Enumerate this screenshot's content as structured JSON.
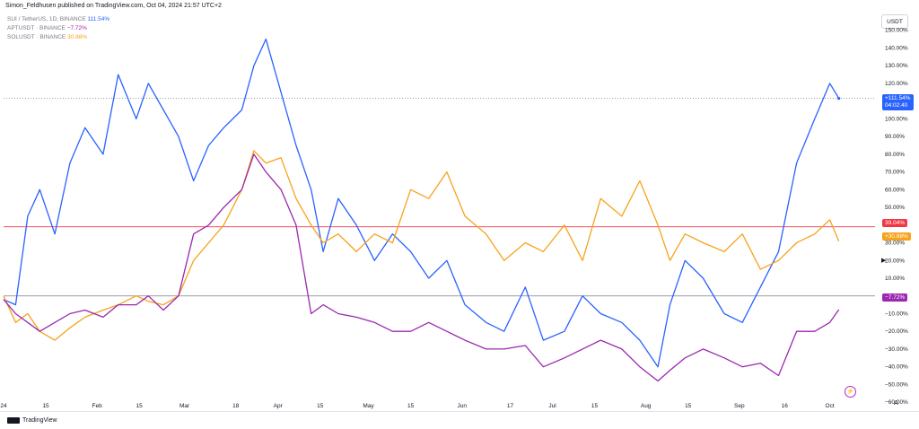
{
  "header": {
    "publisher_line": "Simon_Feldhusen published on TradingView.com, Oct 04, 2024 21:57 UTC+2"
  },
  "legend": [
    {
      "symbol": "SUI / TetherUS, 1D, BINANCE",
      "value": "111.54%",
      "color": "#2962ff"
    },
    {
      "symbol": "APTUSDT · BINANCE",
      "value": "−7.72%",
      "color": "#9c27b0"
    },
    {
      "symbol": "SOLUSDT · BINANCE",
      "value": "30.88%",
      "color": "#f7a21b"
    }
  ],
  "currency_label": "USDT",
  "brand": "TradingView",
  "price_badges": {
    "sui_value": "+111.54%",
    "sui_countdown": "04:02:40",
    "red_line": "39.04%",
    "sol_value": "+30.88%",
    "apt_value": "−7.72%"
  },
  "colors": {
    "sui": "#2962ff",
    "apt": "#9c27b0",
    "sol": "#f7a21b",
    "red_line": "#f23645",
    "zero_line": "#787b86",
    "dotted_line": "#787b86"
  },
  "icons": {
    "scale_mode": "A",
    "arrow": "▶",
    "flash": "⚡"
  },
  "chart_data": {
    "type": "line",
    "y_unit": "%",
    "ylim": [
      -65,
      160
    ],
    "y_ticks": [
      "150.00%",
      "140.00%",
      "130.00%",
      "120.00%",
      "110.00%",
      "100.00%",
      "90.00%",
      "80.00%",
      "70.00%",
      "60.00%",
      "50.00%",
      "40.00%",
      "30.00%",
      "20.00%",
      "10.00%",
      "0.00%",
      "−10.00%",
      "−20.00%",
      "−30.00%",
      "−40.00%",
      "−50.00%",
      "−60.00%"
    ],
    "y_tick_values": [
      150,
      140,
      130,
      120,
      110,
      100,
      90,
      80,
      70,
      60,
      50,
      40,
      30,
      20,
      10,
      0,
      -10,
      -20,
      -30,
      -40,
      -50,
      -60
    ],
    "x_ticks": [
      "24",
      "15",
      "Feb",
      "15",
      "Mar",
      "18",
      "Apr",
      "15",
      "May",
      "15",
      "Jun",
      "17",
      "Jul",
      "15",
      "Aug",
      "15",
      "Sep",
      "16",
      "Oct"
    ],
    "x_tick_dates": [
      "2024-01-01",
      "2024-01-15",
      "2024-02-01",
      "2024-02-15",
      "2024-03-01",
      "2024-03-18",
      "2024-04-01",
      "2024-04-15",
      "2024-05-01",
      "2024-05-15",
      "2024-06-01",
      "2024-06-17",
      "2024-07-01",
      "2024-07-15",
      "2024-08-01",
      "2024-08-15",
      "2024-09-01",
      "2024-09-16",
      "2024-10-01"
    ],
    "x_range": [
      "2024-01-01",
      "2024-10-16"
    ],
    "horizontal_lines": [
      {
        "value": 39.04,
        "color": "#f23645",
        "style": "solid"
      },
      {
        "value": 0,
        "color": "#787b86",
        "style": "solid"
      },
      {
        "value": 111.54,
        "color": "#787b86",
        "style": "dotted"
      }
    ],
    "series": [
      {
        "name": "SUI / TetherUS",
        "color": "#2962ff",
        "x": [
          "2024-01-01",
          "2024-01-05",
          "2024-01-09",
          "2024-01-13",
          "2024-01-18",
          "2024-01-23",
          "2024-01-28",
          "2024-02-03",
          "2024-02-08",
          "2024-02-14",
          "2024-02-18",
          "2024-02-23",
          "2024-02-28",
          "2024-03-04",
          "2024-03-09",
          "2024-03-14",
          "2024-03-20",
          "2024-03-24",
          "2024-03-28",
          "2024-04-02",
          "2024-04-07",
          "2024-04-12",
          "2024-04-16",
          "2024-04-21",
          "2024-04-27",
          "2024-05-03",
          "2024-05-09",
          "2024-05-15",
          "2024-05-21",
          "2024-05-27",
          "2024-06-02",
          "2024-06-09",
          "2024-06-15",
          "2024-06-22",
          "2024-06-28",
          "2024-07-05",
          "2024-07-11",
          "2024-07-17",
          "2024-07-24",
          "2024-07-30",
          "2024-08-05",
          "2024-08-09",
          "2024-08-14",
          "2024-08-20",
          "2024-08-27",
          "2024-09-02",
          "2024-09-08",
          "2024-09-14",
          "2024-09-20",
          "2024-09-26",
          "2024-10-01",
          "2024-10-04"
        ],
        "values": [
          -2,
          -5,
          45,
          60,
          35,
          75,
          95,
          80,
          125,
          100,
          120,
          105,
          90,
          65,
          85,
          95,
          105,
          130,
          145,
          115,
          85,
          60,
          25,
          55,
          40,
          20,
          35,
          25,
          10,
          20,
          -5,
          -15,
          -20,
          5,
          -25,
          -20,
          0,
          -10,
          -15,
          -25,
          -40,
          -5,
          20,
          10,
          -10,
          -15,
          5,
          25,
          75,
          100,
          120,
          111.54
        ]
      },
      {
        "name": "SOLUSDT",
        "color": "#f7a21b",
        "x": [
          "2024-01-01",
          "2024-01-05",
          "2024-01-09",
          "2024-01-13",
          "2024-01-18",
          "2024-01-23",
          "2024-01-28",
          "2024-02-03",
          "2024-02-08",
          "2024-02-14",
          "2024-02-18",
          "2024-02-23",
          "2024-02-28",
          "2024-03-04",
          "2024-03-09",
          "2024-03-14",
          "2024-03-20",
          "2024-03-24",
          "2024-03-28",
          "2024-04-02",
          "2024-04-07",
          "2024-04-12",
          "2024-04-16",
          "2024-04-21",
          "2024-04-27",
          "2024-05-03",
          "2024-05-09",
          "2024-05-15",
          "2024-05-21",
          "2024-05-27",
          "2024-06-02",
          "2024-06-09",
          "2024-06-15",
          "2024-06-22",
          "2024-06-28",
          "2024-07-05",
          "2024-07-11",
          "2024-07-17",
          "2024-07-24",
          "2024-07-30",
          "2024-08-05",
          "2024-08-09",
          "2024-08-14",
          "2024-08-20",
          "2024-08-27",
          "2024-09-02",
          "2024-09-08",
          "2024-09-14",
          "2024-09-20",
          "2024-09-26",
          "2024-10-01",
          "2024-10-04"
        ],
        "values": [
          0,
          -15,
          -10,
          -20,
          -25,
          -18,
          -12,
          -8,
          -5,
          0,
          -3,
          -5,
          0,
          20,
          30,
          40,
          60,
          82,
          75,
          78,
          55,
          40,
          30,
          35,
          25,
          35,
          30,
          60,
          55,
          70,
          45,
          35,
          20,
          30,
          25,
          40,
          20,
          55,
          45,
          65,
          40,
          20,
          35,
          30,
          25,
          35,
          15,
          20,
          30,
          35,
          43,
          30.88
        ]
      },
      {
        "name": "APTUSDT",
        "color": "#9c27b0",
        "x": [
          "2024-01-01",
          "2024-01-05",
          "2024-01-09",
          "2024-01-13",
          "2024-01-18",
          "2024-01-23",
          "2024-01-28",
          "2024-02-03",
          "2024-02-08",
          "2024-02-14",
          "2024-02-18",
          "2024-02-23",
          "2024-02-28",
          "2024-03-04",
          "2024-03-09",
          "2024-03-14",
          "2024-03-20",
          "2024-03-24",
          "2024-03-28",
          "2024-04-02",
          "2024-04-07",
          "2024-04-12",
          "2024-04-16",
          "2024-04-21",
          "2024-04-27",
          "2024-05-03",
          "2024-05-09",
          "2024-05-15",
          "2024-05-21",
          "2024-05-27",
          "2024-06-02",
          "2024-06-09",
          "2024-06-15",
          "2024-06-22",
          "2024-06-28",
          "2024-07-05",
          "2024-07-11",
          "2024-07-17",
          "2024-07-24",
          "2024-07-30",
          "2024-08-05",
          "2024-08-09",
          "2024-08-14",
          "2024-08-20",
          "2024-08-27",
          "2024-09-02",
          "2024-09-08",
          "2024-09-14",
          "2024-09-20",
          "2024-09-26",
          "2024-10-01",
          "2024-10-04"
        ],
        "values": [
          -2,
          -10,
          -15,
          -20,
          -15,
          -10,
          -8,
          -12,
          -5,
          -5,
          0,
          -8,
          0,
          35,
          40,
          50,
          60,
          80,
          70,
          60,
          40,
          -10,
          -5,
          -10,
          -12,
          -15,
          -20,
          -20,
          -15,
          -20,
          -25,
          -30,
          -30,
          -28,
          -40,
          -35,
          -30,
          -25,
          -30,
          -40,
          -48,
          -42,
          -35,
          -30,
          -35,
          -40,
          -38,
          -45,
          -20,
          -20,
          -15,
          -7.72
        ]
      }
    ]
  }
}
